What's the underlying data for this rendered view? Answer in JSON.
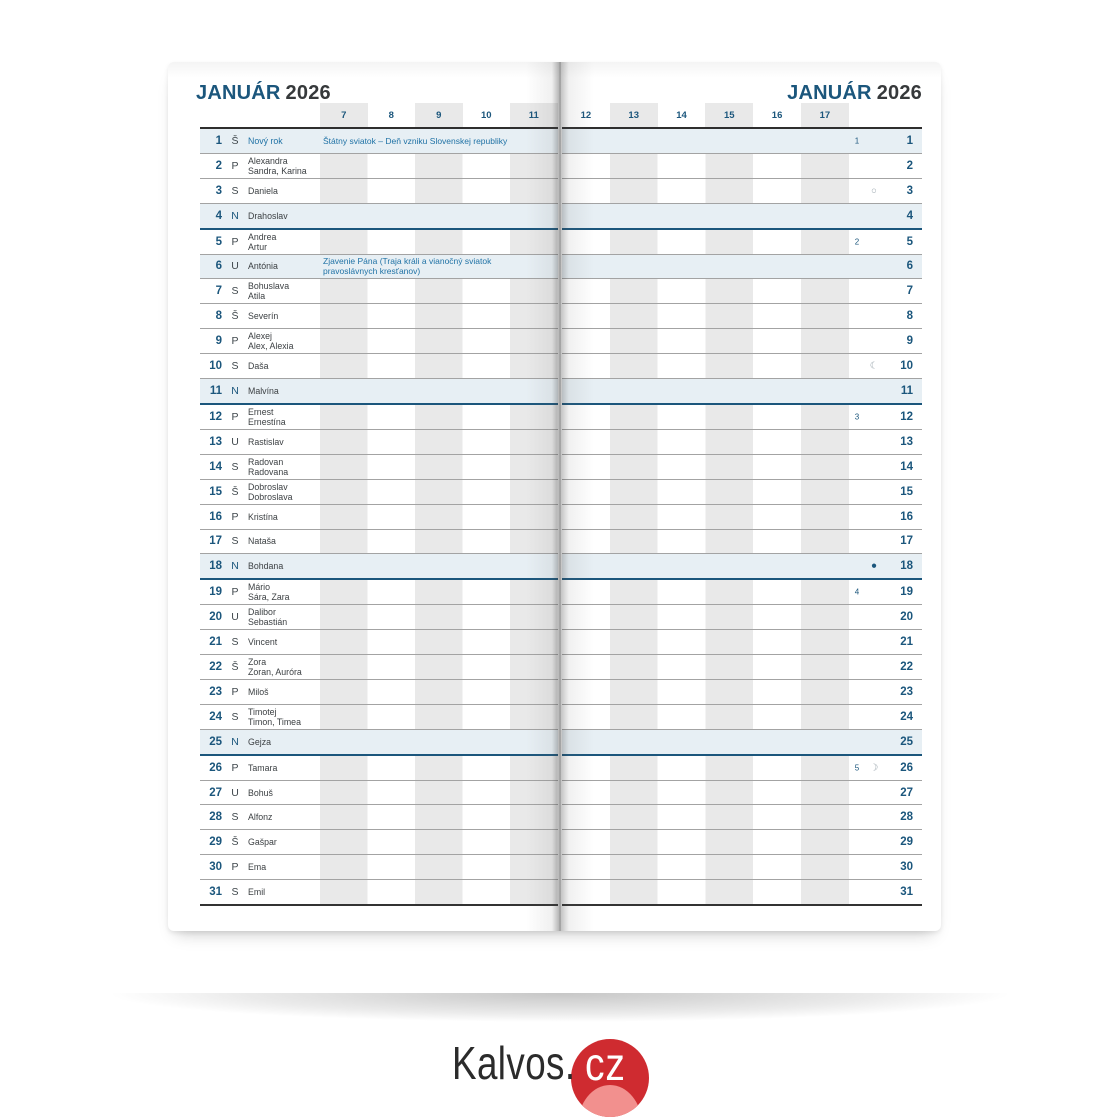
{
  "month": {
    "name": "JANUÁR",
    "year": "2026"
  },
  "hours_left": [
    "7",
    "8",
    "9",
    "10",
    "11"
  ],
  "hours_right": [
    "12",
    "13",
    "14",
    "15",
    "16",
    "17"
  ],
  "days": [
    {
      "d": "1",
      "a": "Š",
      "names": [
        "Nový rok"
      ],
      "holidayName": true,
      "hl": true,
      "week": "1",
      "holiday": "Štátny sviatok – Deň vzniku Slovenskej republiky"
    },
    {
      "d": "2",
      "a": "P",
      "names": [
        "Alexandra",
        "Sandra, Karina"
      ]
    },
    {
      "d": "3",
      "a": "S",
      "names": [
        "Daniela"
      ],
      "moon": "○",
      "moon_name": "full-moon"
    },
    {
      "d": "4",
      "a": "N",
      "names": [
        "Drahoslav"
      ],
      "sun": true
    },
    {
      "d": "5",
      "a": "P",
      "names": [
        "Andrea",
        "Artur"
      ],
      "week": "2"
    },
    {
      "d": "6",
      "a": "U",
      "names": [
        "Antónia"
      ],
      "hl": true,
      "holiday": "Zjavenie Pána (Traja králi a vianočný sviatok pravoslávnych kresťanov)"
    },
    {
      "d": "7",
      "a": "S",
      "names": [
        "Bohuslava",
        "Atila"
      ]
    },
    {
      "d": "8",
      "a": "Š",
      "names": [
        "Severín"
      ]
    },
    {
      "d": "9",
      "a": "P",
      "names": [
        "Alexej",
        "Alex, Alexia"
      ]
    },
    {
      "d": "10",
      "a": "S",
      "names": [
        "Daša"
      ],
      "moon": "☾",
      "moon_name": "last-quarter-moon"
    },
    {
      "d": "11",
      "a": "N",
      "names": [
        "Malvína"
      ],
      "sun": true
    },
    {
      "d": "12",
      "a": "P",
      "names": [
        "Ernest",
        "Ernestína"
      ],
      "week": "3"
    },
    {
      "d": "13",
      "a": "U",
      "names": [
        "Rastislav"
      ]
    },
    {
      "d": "14",
      "a": "S",
      "names": [
        "Radovan",
        "Radovana"
      ]
    },
    {
      "d": "15",
      "a": "Š",
      "names": [
        "Dobroslav",
        "Dobroslava"
      ]
    },
    {
      "d": "16",
      "a": "P",
      "names": [
        "Kristína"
      ]
    },
    {
      "d": "17",
      "a": "S",
      "names": [
        "Nataša"
      ]
    },
    {
      "d": "18",
      "a": "N",
      "names": [
        "Bohdana"
      ],
      "sun": true,
      "moon": "●",
      "moonDark": true,
      "moon_name": "new-moon"
    },
    {
      "d": "19",
      "a": "P",
      "names": [
        "Mário",
        "Sára, Zara"
      ],
      "week": "4"
    },
    {
      "d": "20",
      "a": "U",
      "names": [
        "Dalibor",
        "Sebastián"
      ]
    },
    {
      "d": "21",
      "a": "S",
      "names": [
        "Vincent"
      ]
    },
    {
      "d": "22",
      "a": "Š",
      "names": [
        "Zora",
        "Zoran, Auróra"
      ]
    },
    {
      "d": "23",
      "a": "P",
      "names": [
        "Miloš"
      ]
    },
    {
      "d": "24",
      "a": "S",
      "names": [
        "Timotej",
        "Timon, Timea"
      ]
    },
    {
      "d": "25",
      "a": "N",
      "names": [
        "Gejza"
      ],
      "sun": true
    },
    {
      "d": "26",
      "a": "P",
      "names": [
        "Tamara"
      ],
      "week": "5",
      "moon": "☽",
      "moon_name": "first-quarter-moon"
    },
    {
      "d": "27",
      "a": "U",
      "names": [
        "Bohuš"
      ]
    },
    {
      "d": "28",
      "a": "S",
      "names": [
        "Alfonz"
      ]
    },
    {
      "d": "29",
      "a": "Š",
      "names": [
        "Gašpar"
      ]
    },
    {
      "d": "30",
      "a": "P",
      "names": [
        "Ema"
      ]
    },
    {
      "d": "31",
      "a": "S",
      "names": [
        "Emil"
      ]
    }
  ],
  "logo": {
    "brand": "Kalvos.",
    "tld": "cz"
  },
  "colors": {
    "accent": "#1b567c",
    "holiday": "#2173a6",
    "hl": "#e7eff4",
    "stripe": "#e9e9e9",
    "ink": "#3c4043",
    "line": "#a3a3a3",
    "dark": "#2e2e2e",
    "red": "#cf2b30",
    "pink": "#f2908e"
  }
}
